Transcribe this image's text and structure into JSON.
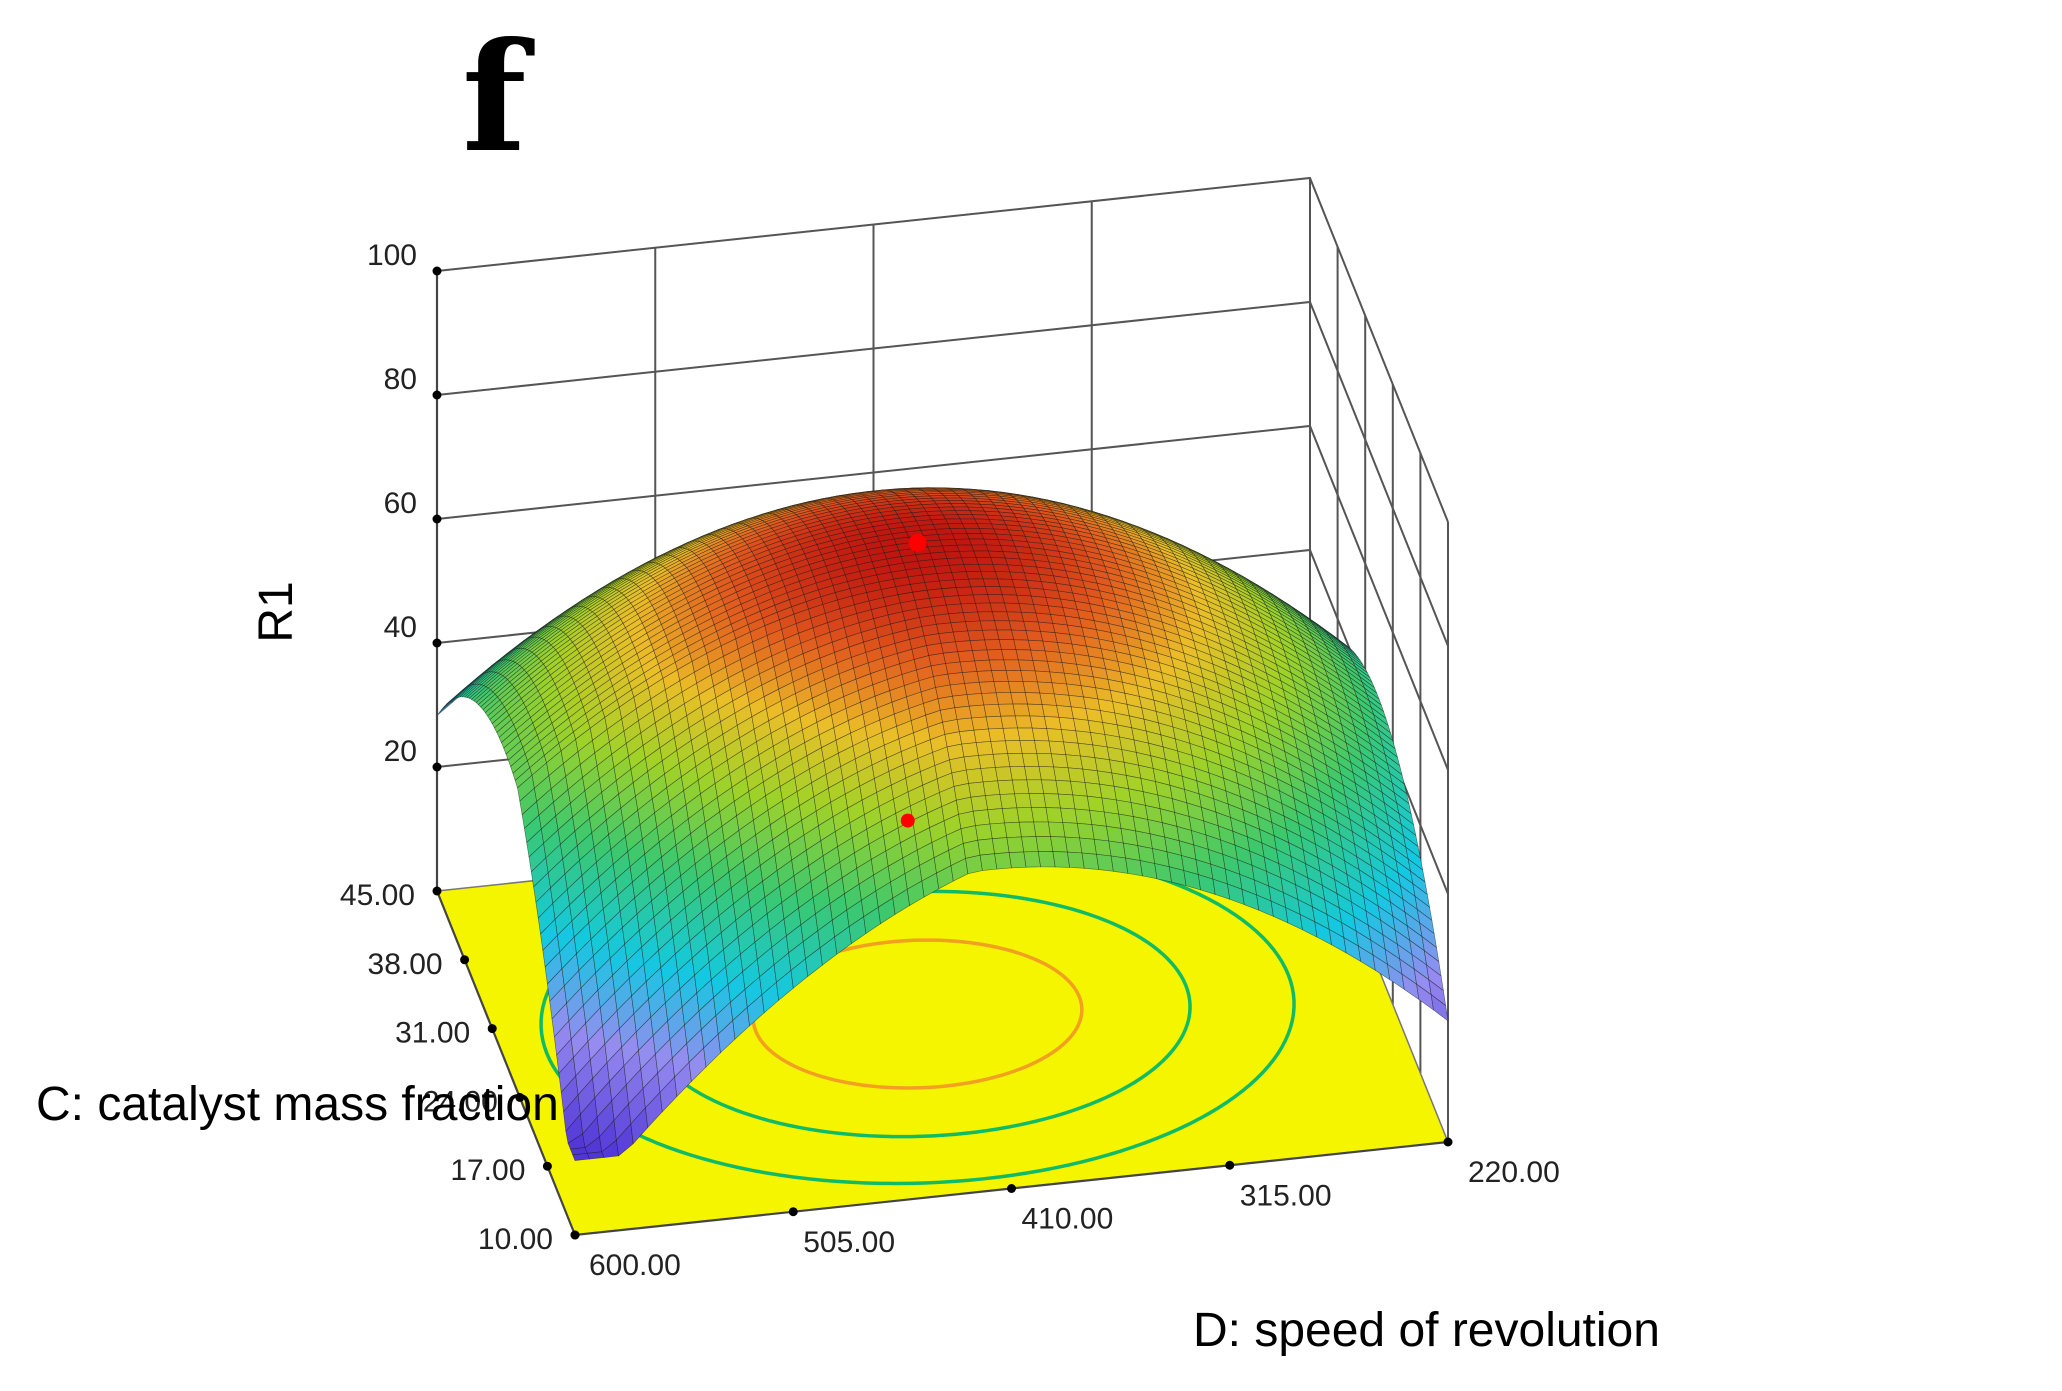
{
  "chart_data": {
    "type": "surface",
    "panel_label": "f",
    "zlabel": "R1",
    "xlabel": "C: catalyst mass fraction",
    "ylabel": "D: speed of revolution",
    "z_ticks": [
      "20",
      "40",
      "60",
      "80",
      "100"
    ],
    "c_ticks": [
      "45.00",
      "38.00",
      "31.00",
      "24.00",
      "17.00",
      "10.00"
    ],
    "d_ticks": [
      "600.00",
      "505.00",
      "410.00",
      "315.00",
      "220.00"
    ],
    "c_range": [
      10,
      45
    ],
    "d_range": [
      220,
      600
    ],
    "z_range": [
      0,
      100
    ],
    "surface_max": 76,
    "surface_min_corner": 12,
    "optimum_point": {
      "c": 28,
      "d": 420,
      "r1": 76
    },
    "contour_levels": [
      55,
      65,
      72
    ],
    "colors": {
      "floor": "#f5f500",
      "contour_outer": "#11bb66",
      "contour_inner": "#f2a020",
      "marker": "#ff0000"
    }
  }
}
